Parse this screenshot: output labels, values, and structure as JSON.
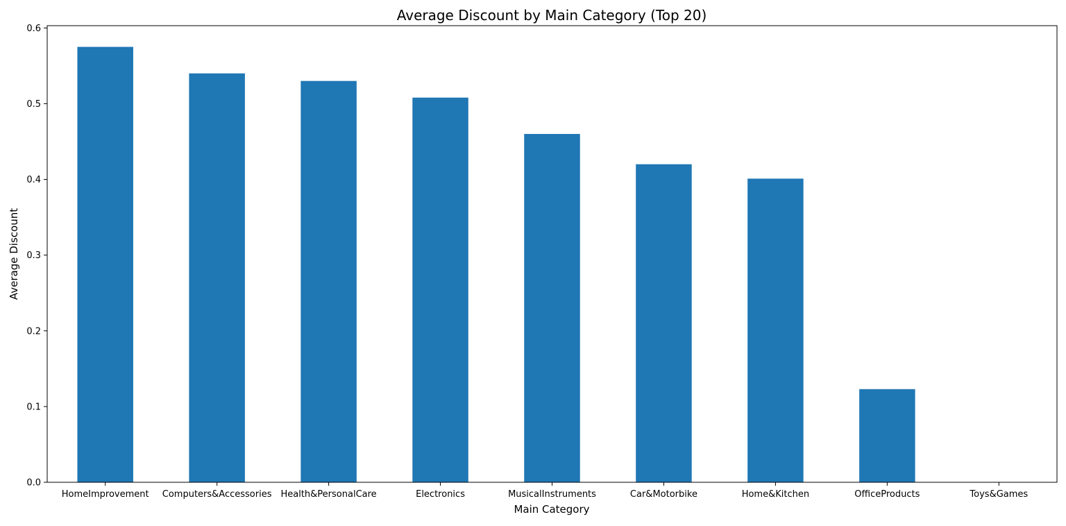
{
  "chart_data": {
    "type": "bar",
    "title": "Average Discount by Main Category (Top 20)",
    "xlabel": "Main Category",
    "ylabel": "Average Discount",
    "categories": [
      "HomeImprovement",
      "Computers&Accessories",
      "Health&PersonalCare",
      "Electronics",
      "MusicalInstruments",
      "Car&Motorbike",
      "Home&Kitchen",
      "OfficeProducts",
      "Toys&Games"
    ],
    "values": [
      0.575,
      0.54,
      0.53,
      0.508,
      0.46,
      0.42,
      0.401,
      0.123,
      0.0
    ],
    "ylim": [
      0,
      0.603
    ],
    "yticks": [
      0.0,
      0.1,
      0.2,
      0.3,
      0.4,
      0.5,
      0.6
    ],
    "ytick_labels": [
      "0.0",
      "0.1",
      "0.2",
      "0.3",
      "0.4",
      "0.5",
      "0.6"
    ],
    "bar_color": "#1f77b4",
    "grid": false,
    "legend": "none"
  }
}
